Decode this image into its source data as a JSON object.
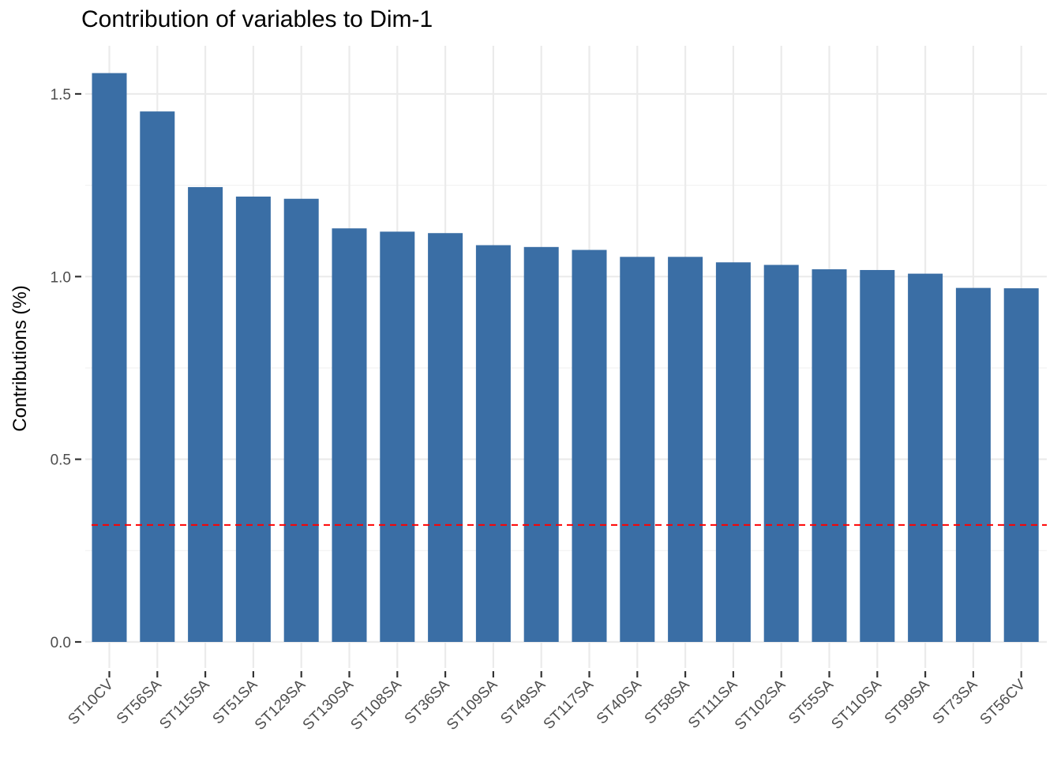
{
  "chart_data": {
    "type": "bar",
    "title": "Contribution of variables to Dim-1",
    "xlabel": "",
    "ylabel": "Contributions (%)",
    "ylim": [
      0,
      1.55
    ],
    "yticks": [
      0.0,
      0.5,
      1.0,
      1.5
    ],
    "ytick_labels": [
      "0.0",
      "0.5",
      "1.0",
      "1.5"
    ],
    "categories": [
      "ST10CV",
      "ST56SA",
      "ST115SA",
      "ST51SA",
      "ST129SA",
      "ST130SA",
      "ST108SA",
      "ST36SA",
      "ST109SA",
      "ST49SA",
      "ST117SA",
      "ST40SA",
      "ST58SA",
      "ST111SA",
      "ST102SA",
      "ST55SA",
      "ST110SA",
      "ST99SA",
      "ST73SA",
      "ST56CV"
    ],
    "values": [
      1.557,
      1.452,
      1.245,
      1.219,
      1.213,
      1.132,
      1.123,
      1.119,
      1.086,
      1.081,
      1.073,
      1.054,
      1.054,
      1.039,
      1.032,
      1.02,
      1.018,
      1.008,
      0.969,
      0.968
    ],
    "reference_line": {
      "value": 0.32,
      "style": "dashed",
      "color": "#ff0000"
    },
    "bar_color": "#3a6ea5",
    "grid": true,
    "legend": "none"
  }
}
